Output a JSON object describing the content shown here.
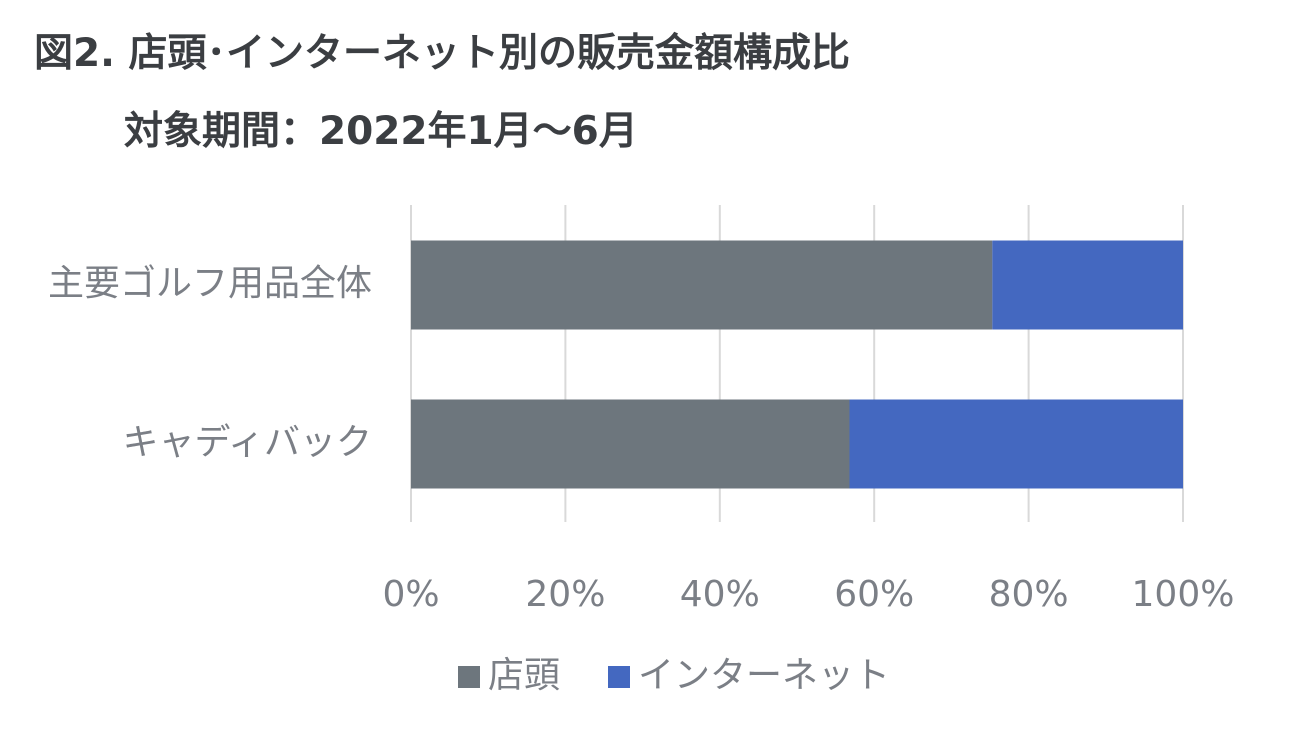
{
  "title": "図2. 店頭･インターネット別の販売金額構成比",
  "subtitle": "対象期間：2022年1月～6月",
  "chart_data": {
    "type": "bar",
    "orientation": "horizontal",
    "stacked": true,
    "percent_stacked": true,
    "categories": [
      "主要ゴルフ用品全体",
      "キャディバック"
    ],
    "series": [
      {
        "name": "店頭",
        "values": [
          75.3,
          56.8
        ],
        "color": "#6d767d"
      },
      {
        "name": "インターネット",
        "values": [
          24.7,
          43.2
        ],
        "color": "#4468c0"
      }
    ],
    "xlim": [
      0,
      100
    ],
    "x_ticks": [
      0,
      20,
      40,
      60,
      80,
      100
    ],
    "x_tick_labels": [
      "0%",
      "20%",
      "40%",
      "60%",
      "80%",
      "100%"
    ],
    "grid": true,
    "legend": "bottom"
  }
}
